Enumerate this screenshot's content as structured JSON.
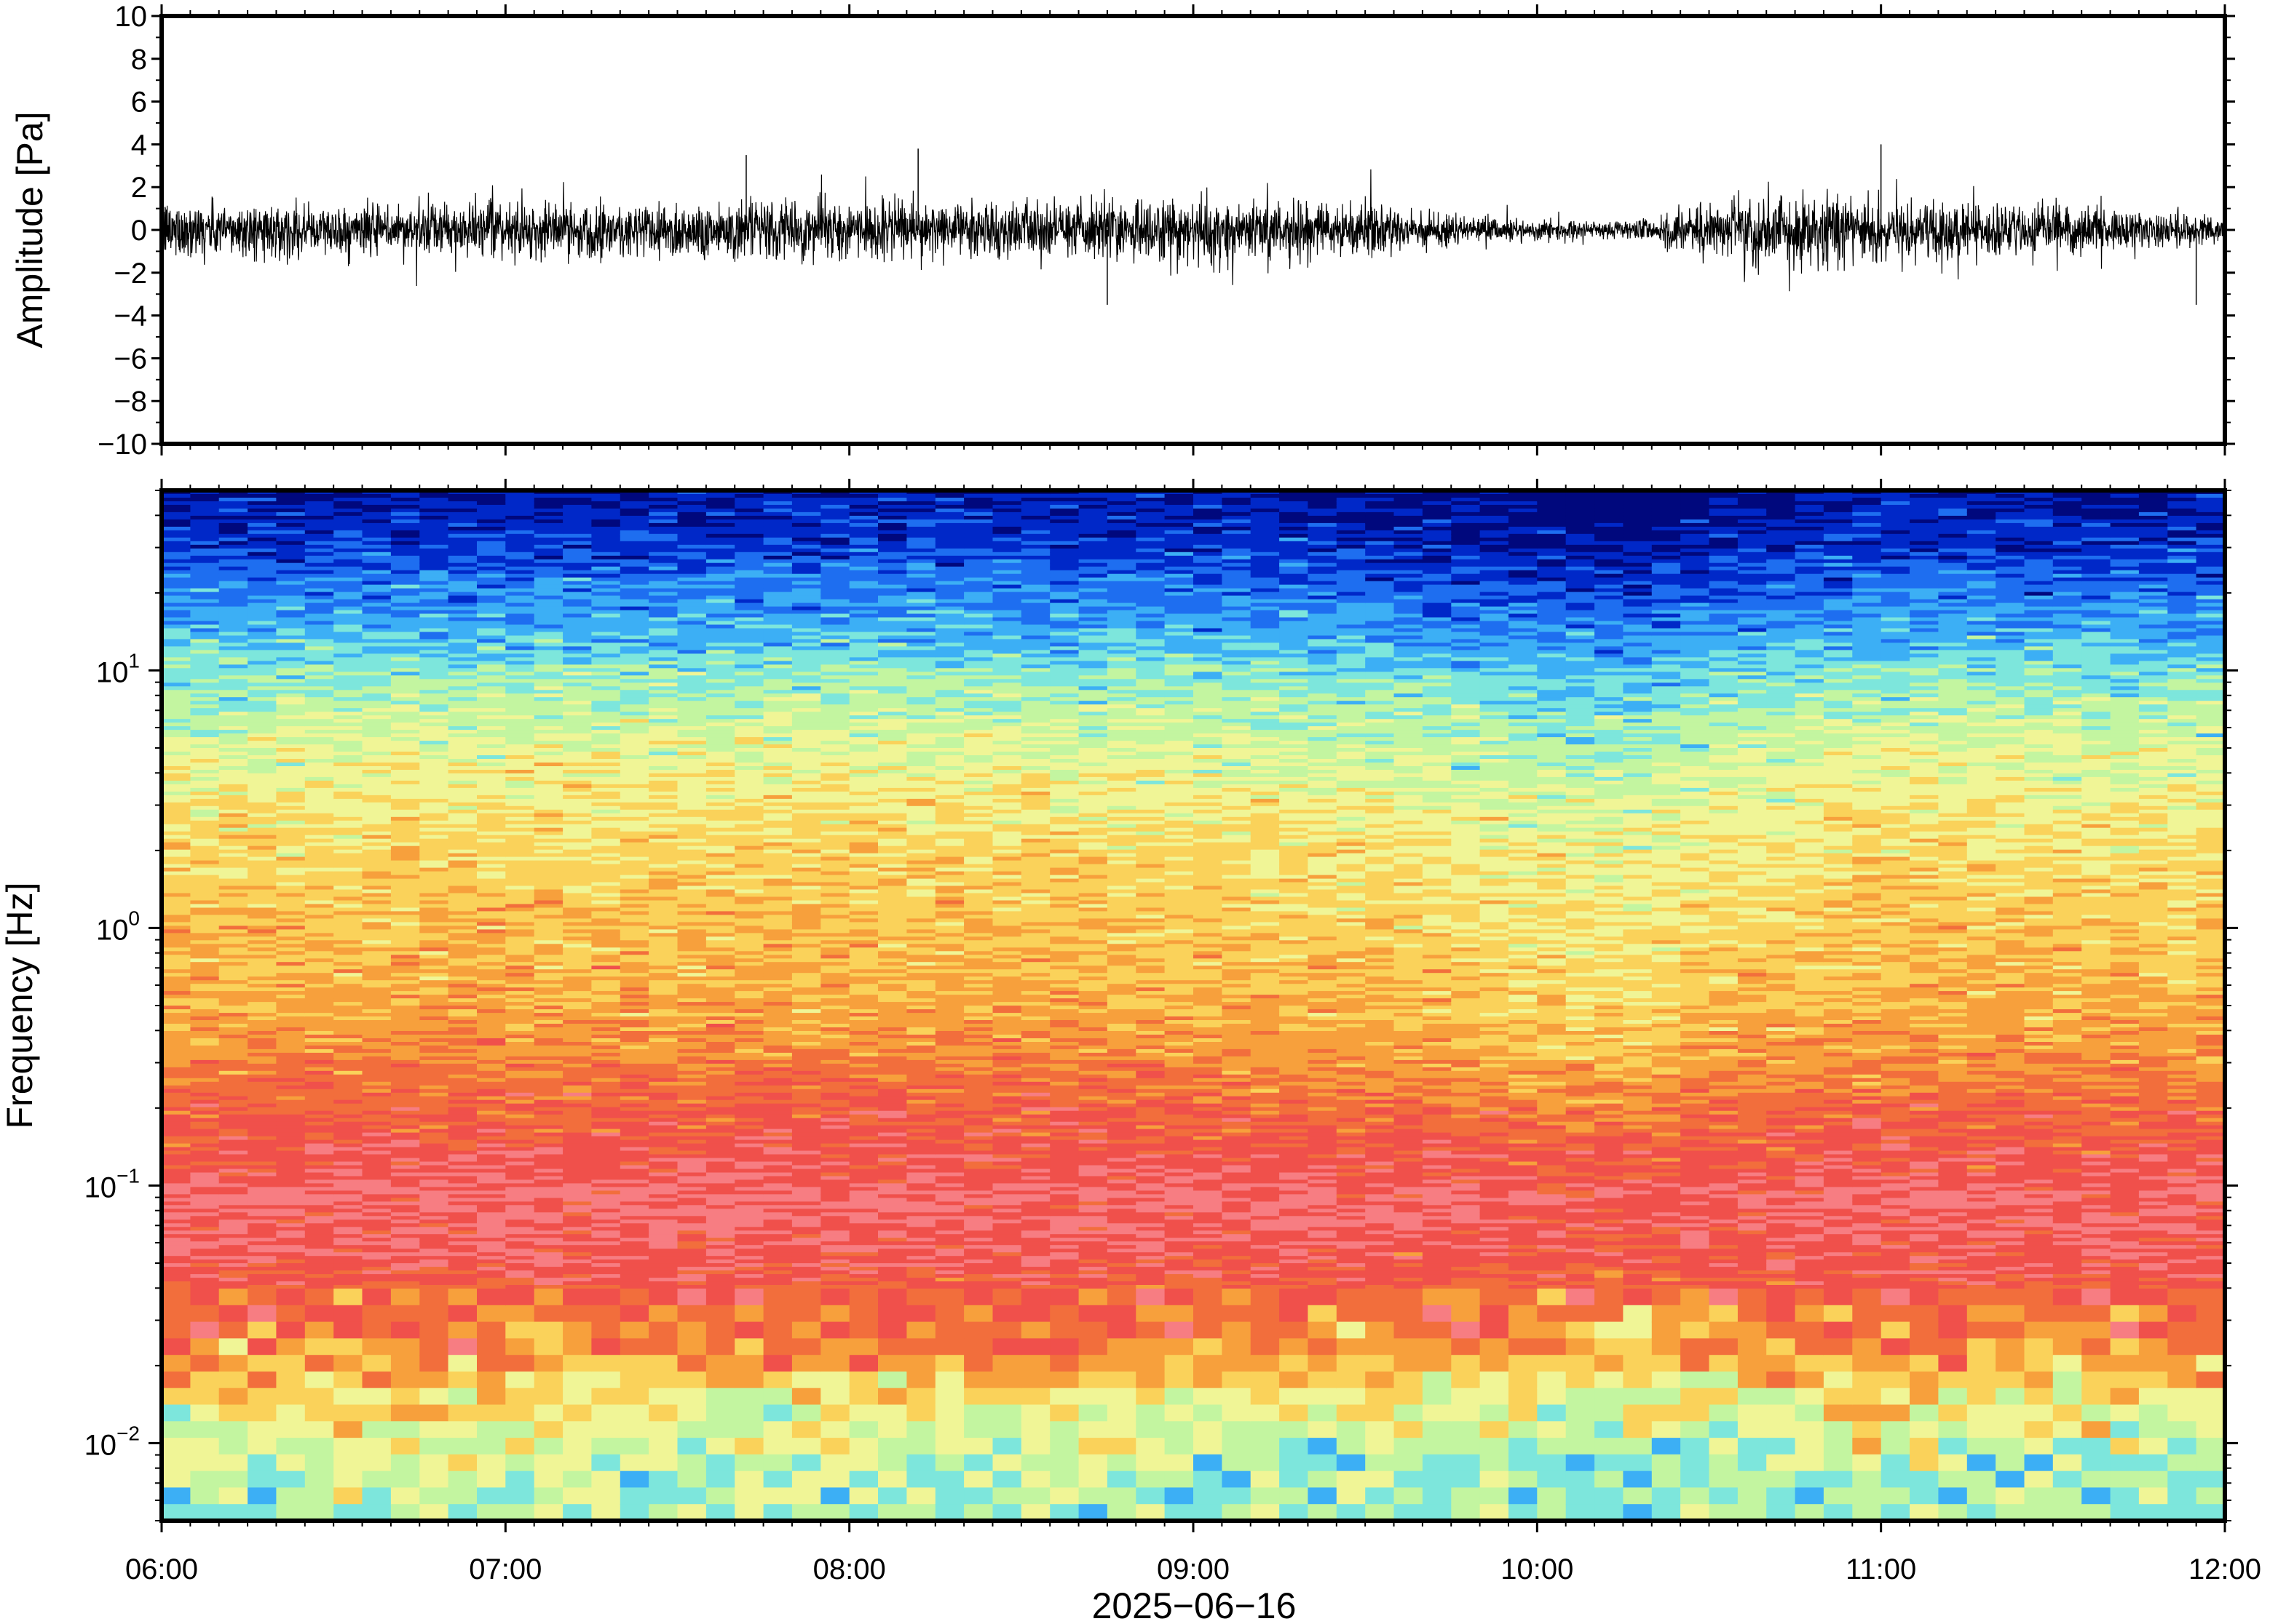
{
  "chart_data": [
    {
      "type": "line",
      "ylabel": "Amplitude [Pa]",
      "ylim": [
        -10,
        10
      ],
      "yticks": [
        "10",
        "8",
        "6",
        "4",
        "2",
        "0",
        "−2",
        "−4",
        "−6",
        "−8",
        "−10"
      ],
      "ytick_values": [
        10,
        8,
        6,
        4,
        2,
        0,
        -2,
        -4,
        -6,
        -8,
        -10
      ],
      "xlim": [
        "06:00",
        "12:00"
      ],
      "signal_profile": {
        "time_hours": [
          6.0,
          6.5,
          7.0,
          7.5,
          8.0,
          8.5,
          9.0,
          9.5,
          10.0,
          10.25,
          10.5,
          10.75,
          11.0,
          11.5,
          12.0
        ],
        "envelope_pa": [
          1.2,
          1.0,
          1.1,
          1.2,
          1.2,
          1.1,
          1.4,
          1.0,
          0.4,
          0.35,
          1.2,
          1.5,
          1.3,
          1.0,
          0.6
        ]
      },
      "peaks": [
        {
          "time": "07:42",
          "value": 3.5
        },
        {
          "time": "08:12",
          "value": 3.8
        },
        {
          "time": "08:45",
          "value": -3.5
        },
        {
          "time": "11:00",
          "value": 4.0
        },
        {
          "time": "11:55",
          "value": -3.5
        }
      ]
    },
    {
      "type": "heatmap",
      "ylabel": "Frequency [Hz]",
      "xlabel": "2025−06−16",
      "yscale": "log",
      "ylim_hz": [
        0.005,
        50
      ],
      "ytick_values": [
        10,
        1,
        0.1,
        0.01
      ],
      "ytick_labels": [
        {
          "base": "10",
          "exp": "1"
        },
        {
          "base": "10",
          "exp": "0"
        },
        {
          "base": "10",
          "exp": "−1"
        },
        {
          "base": "10",
          "exp": "−2"
        }
      ],
      "xticks": [
        "06:00",
        "07:00",
        "08:00",
        "09:00",
        "10:00",
        "11:00",
        "12:00"
      ],
      "xtick_hours": [
        6,
        7,
        8,
        9,
        10,
        11,
        12
      ],
      "colormap": [
        "#00087d",
        "#0028c8",
        "#1e6ef0",
        "#3caff5",
        "#7de6dc",
        "#c3f5a0",
        "#f0f596",
        "#fad25a",
        "#f7a03c",
        "#f26e3c",
        "#f0504b",
        "#f77d82"
      ],
      "freq_profile": [
        {
          "log10_f": 1.7,
          "level": 0.2
        },
        {
          "log10_f": 1.5,
          "level": 0.9
        },
        {
          "log10_f": 1.3,
          "level": 2.1
        },
        {
          "log10_f": 1.1,
          "level": 3.2
        },
        {
          "log10_f": 1.0,
          "level": 4.0
        },
        {
          "log10_f": 0.8,
          "level": 5.0
        },
        {
          "log10_f": 0.5,
          "level": 6.1
        },
        {
          "log10_f": 0.2,
          "level": 6.8
        },
        {
          "log10_f": 0.0,
          "level": 7.1
        },
        {
          "log10_f": -0.3,
          "level": 7.5
        },
        {
          "log10_f": -0.5,
          "level": 8.2
        },
        {
          "log10_f": -0.7,
          "level": 9.2
        },
        {
          "log10_f": -0.9,
          "level": 10.0
        },
        {
          "log10_f": -1.05,
          "level": 10.6
        },
        {
          "log10_f": -1.3,
          "level": 10.1
        },
        {
          "log10_f": -1.5,
          "level": 9.0
        },
        {
          "log10_f": -1.65,
          "level": 8.0
        },
        {
          "log10_f": -1.8,
          "level": 6.5
        },
        {
          "log10_f": -2.0,
          "level": 5.2
        },
        {
          "log10_f": -2.3,
          "level": 4.5
        }
      ],
      "time_modulation": {
        "time_hours": [
          6.0,
          7.0,
          8.0,
          8.7,
          9.0,
          9.5,
          10.0,
          10.3,
          10.5,
          11.0,
          11.5,
          12.0
        ],
        "offset": [
          0.2,
          0.3,
          0.3,
          0.2,
          0.1,
          -0.1,
          -0.6,
          -0.8,
          -0.3,
          0.2,
          0.1,
          0.0
        ]
      }
    }
  ]
}
